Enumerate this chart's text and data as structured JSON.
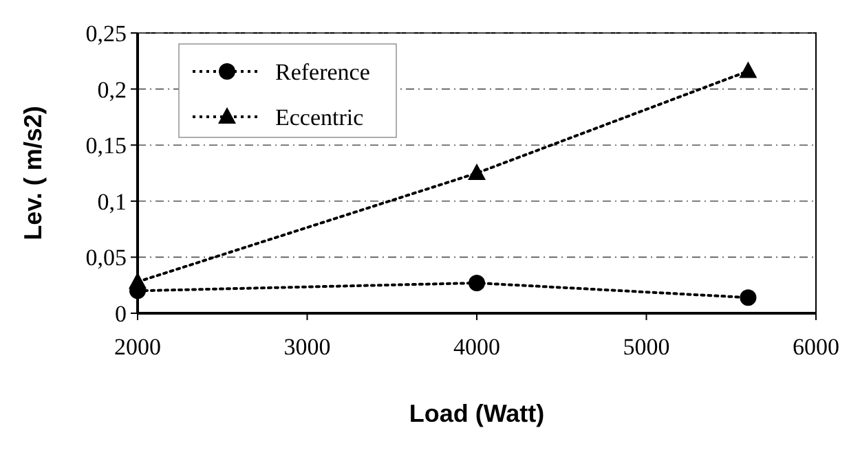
{
  "chart_data": {
    "type": "line",
    "xlabel": "Load (Watt)",
    "ylabel": "Lev. ( m/s2)",
    "x": [
      2000,
      4000,
      5600
    ],
    "series": [
      {
        "name": "Reference",
        "color": "#000000",
        "values": [
          0.02,
          0.027,
          0.014
        ],
        "marker": "circle"
      },
      {
        "name": "Eccentric",
        "color": "#000000",
        "values": [
          0.028,
          0.125,
          0.216
        ],
        "marker": "triangle"
      }
    ],
    "xlim": [
      2000,
      6000
    ],
    "xticks": [
      2000,
      3000,
      4000,
      5000,
      6000
    ],
    "ylim": [
      0,
      0.25
    ],
    "yticks": [
      0,
      {
        "value": 0.05,
        "label": "0,05"
      },
      {
        "value": 0.1,
        "label": "0,1"
      },
      {
        "value": 0.15,
        "label": "0,15"
      },
      {
        "value": 0.2,
        "label": "0,2"
      },
      {
        "value": 0.25,
        "label": "0,25"
      }
    ],
    "grid": "y",
    "legend": "top left",
    "line_style": "dotted"
  }
}
